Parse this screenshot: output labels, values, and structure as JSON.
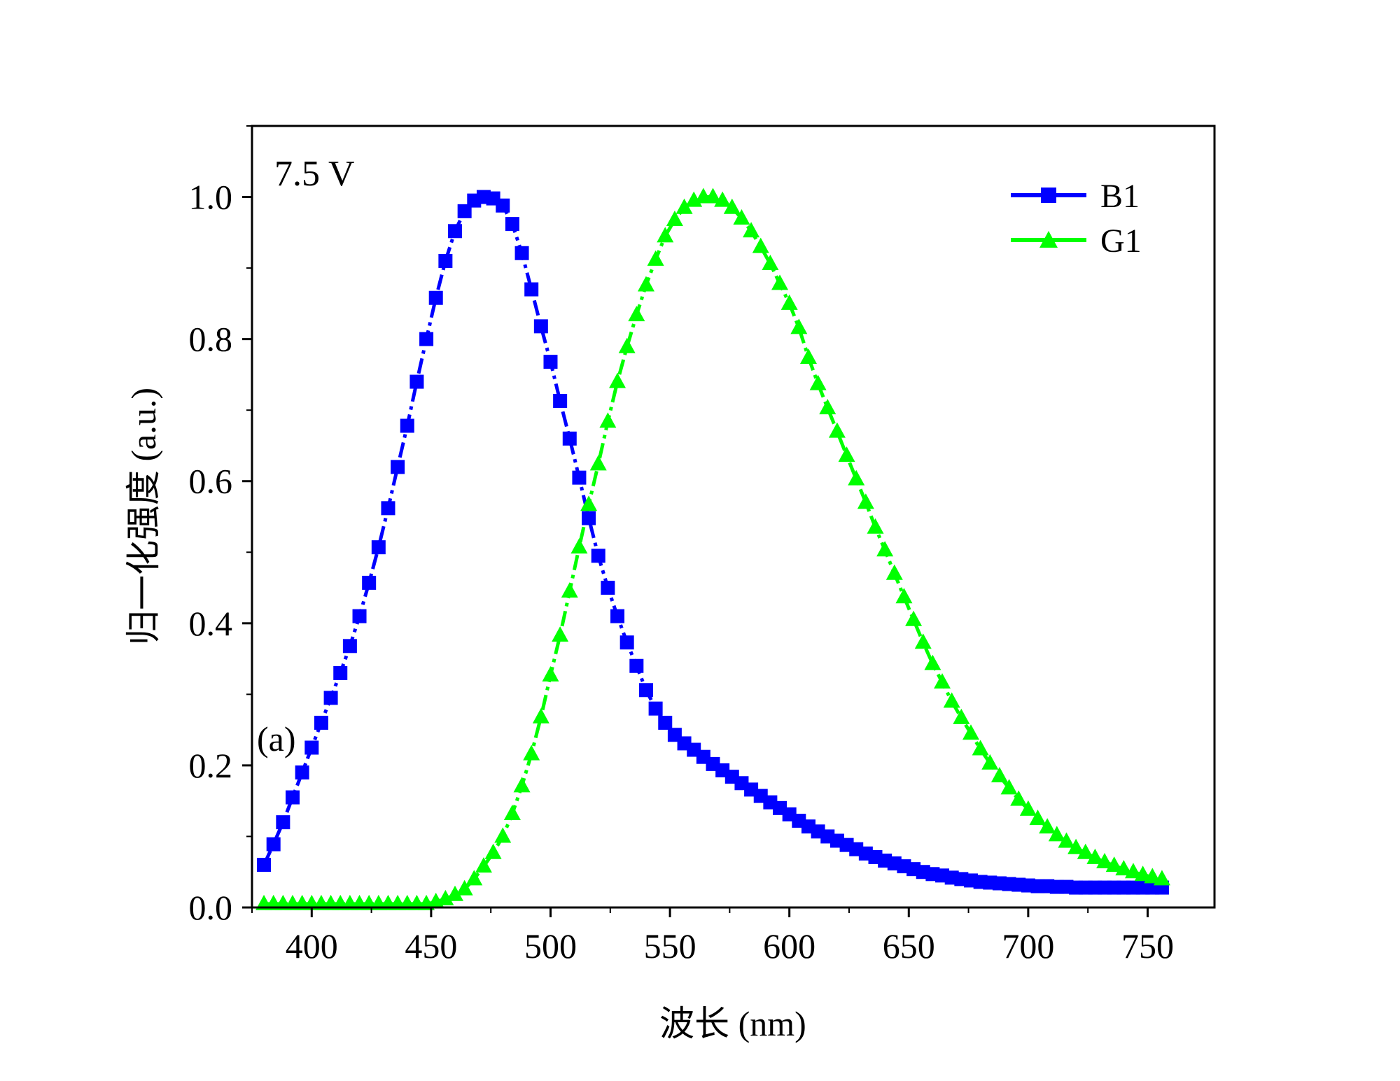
{
  "chart_data": {
    "type": "line",
    "title": "",
    "xlabel": "波长 (nm)",
    "ylabel": "归一化强度 (a.u.)",
    "xlim": [
      375,
      778
    ],
    "ylim": [
      0,
      1.1
    ],
    "xticks": [
      400,
      450,
      500,
      550,
      600,
      650,
      700,
      750
    ],
    "yticks": [
      0.0,
      0.2,
      0.4,
      0.6,
      0.8,
      1.0
    ],
    "xtick_labels": [
      "400",
      "450",
      "500",
      "550",
      "600",
      "650",
      "700",
      "750"
    ],
    "ytick_labels": [
      "0.0",
      "0.2",
      "0.4",
      "0.6",
      "0.8",
      "1.0"
    ],
    "grid": false,
    "legend_position": "top-right",
    "annotations": [
      "7.5 V",
      "(a)"
    ],
    "x": [
      380,
      384,
      388,
      392,
      396,
      400,
      404,
      408,
      412,
      416,
      420,
      424,
      428,
      432,
      436,
      440,
      444,
      448,
      452,
      456,
      460,
      464,
      468,
      472,
      476,
      480,
      484,
      488,
      492,
      496,
      500,
      504,
      508,
      512,
      516,
      520,
      524,
      528,
      532,
      536,
      540,
      544,
      548,
      552,
      556,
      560,
      564,
      568,
      572,
      576,
      580,
      584,
      588,
      592,
      596,
      600,
      604,
      608,
      612,
      616,
      620,
      624,
      628,
      632,
      636,
      640,
      644,
      648,
      652,
      656,
      660,
      664,
      668,
      672,
      676,
      680,
      684,
      688,
      692,
      696,
      700,
      704,
      708,
      712,
      716,
      720,
      724,
      728,
      732,
      736,
      740,
      744,
      748,
      752,
      756
    ],
    "series": [
      {
        "name": "B1",
        "color": "#0000ff",
        "marker": "square",
        "values": [
          0.06,
          0.089,
          0.12,
          0.155,
          0.19,
          0.225,
          0.26,
          0.295,
          0.33,
          0.368,
          0.41,
          0.457,
          0.507,
          0.562,
          0.62,
          0.678,
          0.74,
          0.8,
          0.858,
          0.91,
          0.952,
          0.98,
          0.995,
          1.0,
          0.998,
          0.988,
          0.962,
          0.921,
          0.87,
          0.818,
          0.768,
          0.713,
          0.66,
          0.605,
          0.548,
          0.495,
          0.45,
          0.41,
          0.373,
          0.34,
          0.306,
          0.28,
          0.26,
          0.243,
          0.231,
          0.222,
          0.212,
          0.202,
          0.193,
          0.184,
          0.175,
          0.166,
          0.157,
          0.148,
          0.14,
          0.131,
          0.122,
          0.114,
          0.107,
          0.1,
          0.094,
          0.088,
          0.082,
          0.076,
          0.071,
          0.066,
          0.062,
          0.058,
          0.054,
          0.05,
          0.047,
          0.045,
          0.042,
          0.04,
          0.038,
          0.036,
          0.035,
          0.034,
          0.033,
          0.032,
          0.031,
          0.03,
          0.03,
          0.029,
          0.029,
          0.028,
          0.028,
          0.028,
          0.028,
          0.028,
          0.028,
          0.028,
          0.028,
          0.028,
          0.028
        ]
      },
      {
        "name": "G1",
        "color": "#00ff00",
        "marker": "triangle",
        "values": [
          0.005,
          0.005,
          0.005,
          0.005,
          0.005,
          0.005,
          0.005,
          0.005,
          0.005,
          0.005,
          0.005,
          0.005,
          0.005,
          0.005,
          0.005,
          0.005,
          0.005,
          0.005,
          0.008,
          0.012,
          0.018,
          0.026,
          0.04,
          0.058,
          0.077,
          0.1,
          0.132,
          0.171,
          0.216,
          0.268,
          0.327,
          0.383,
          0.445,
          0.507,
          0.567,
          0.624,
          0.684,
          0.74,
          0.789,
          0.834,
          0.876,
          0.912,
          0.945,
          0.968,
          0.985,
          0.995,
          1.0,
          1.0,
          0.995,
          0.985,
          0.97,
          0.952,
          0.93,
          0.906,
          0.878,
          0.85,
          0.816,
          0.774,
          0.737,
          0.703,
          0.67,
          0.636,
          0.603,
          0.57,
          0.535,
          0.503,
          0.47,
          0.437,
          0.405,
          0.373,
          0.343,
          0.317,
          0.29,
          0.267,
          0.245,
          0.223,
          0.203,
          0.185,
          0.168,
          0.152,
          0.138,
          0.125,
          0.113,
          0.102,
          0.093,
          0.084,
          0.077,
          0.07,
          0.064,
          0.059,
          0.054,
          0.05,
          0.046,
          0.043,
          0.04
        ]
      }
    ]
  }
}
